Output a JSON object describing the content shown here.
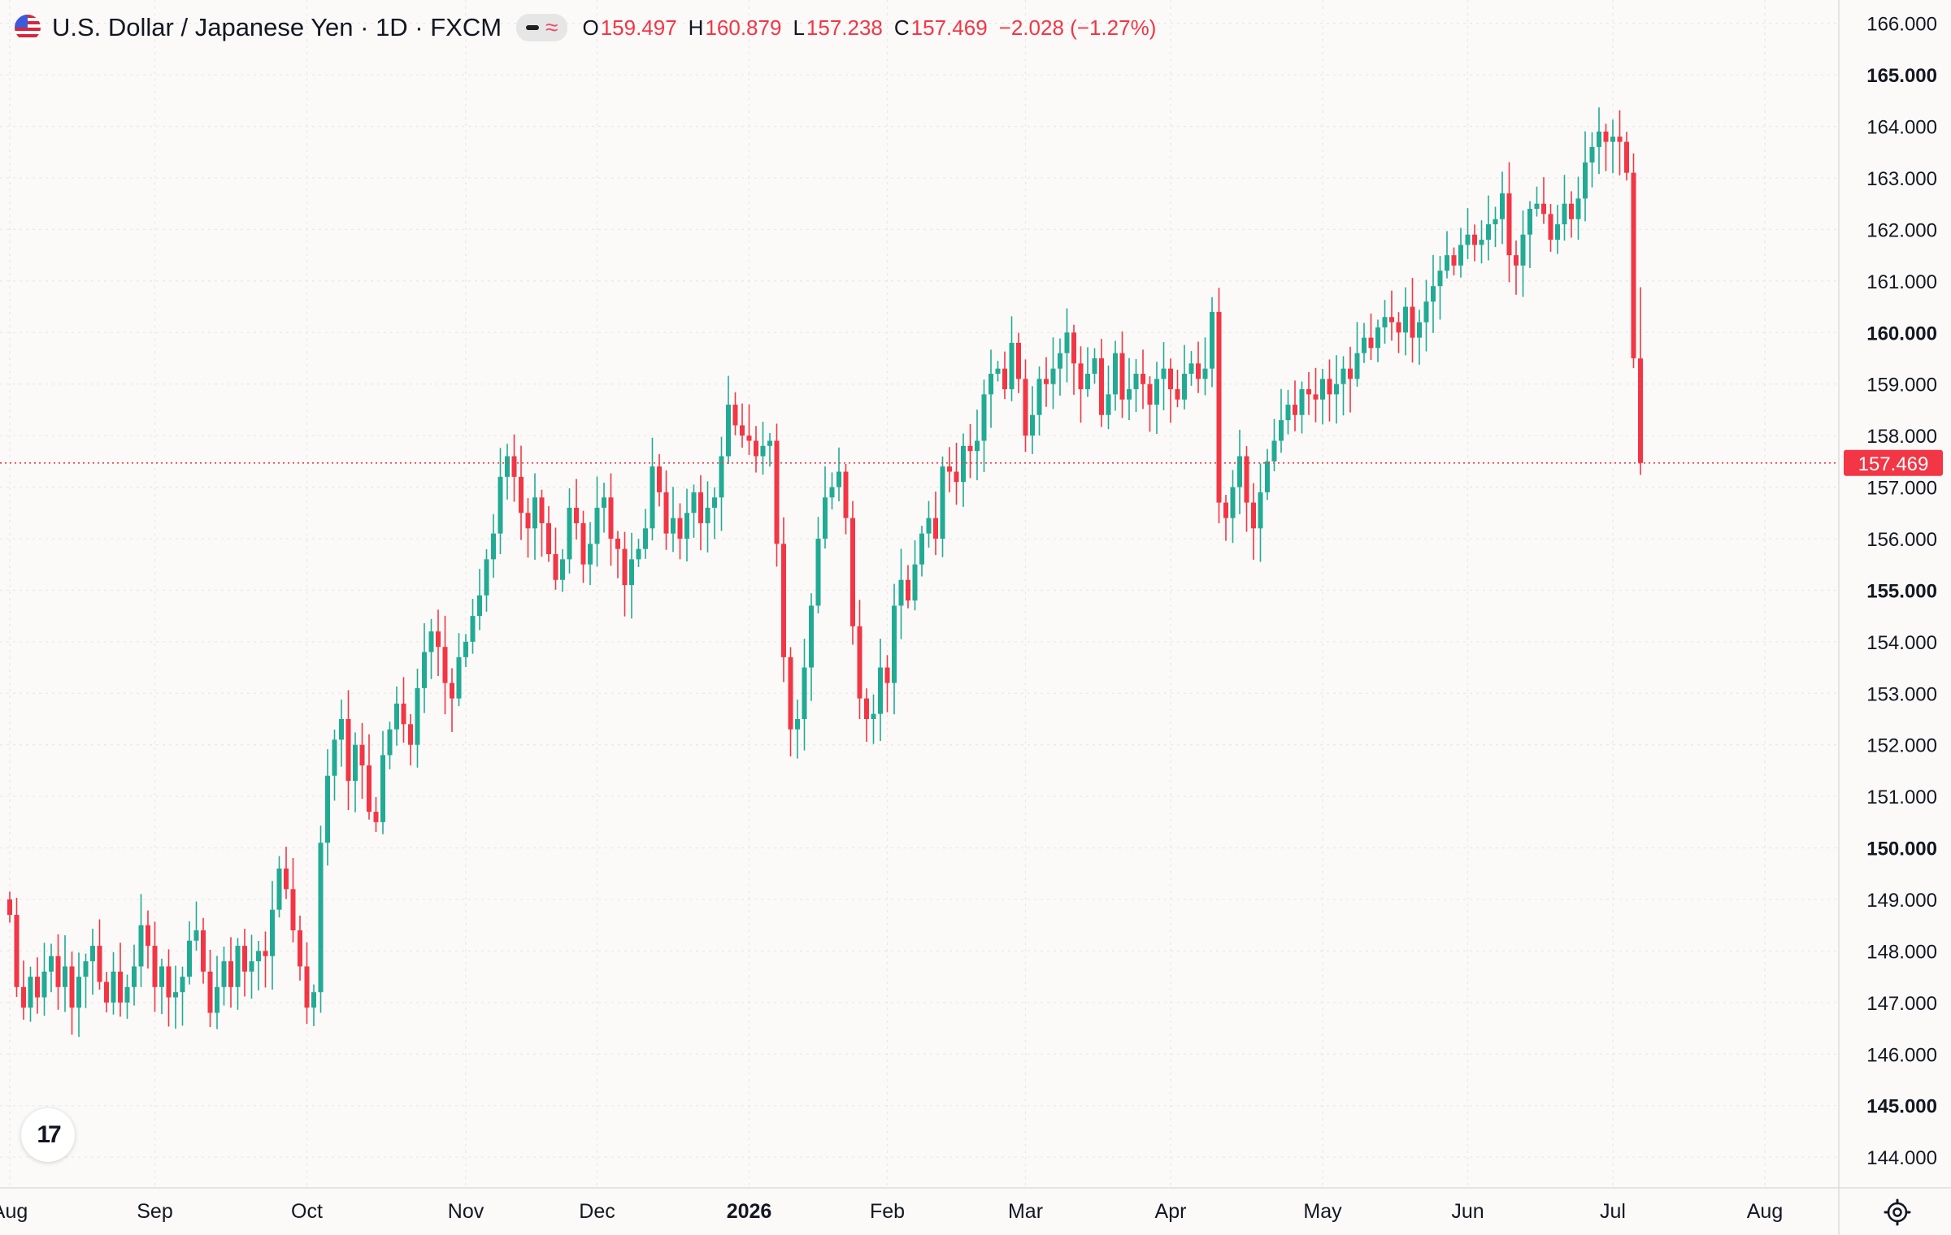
{
  "legend": {
    "symbol": "U.S. Dollar / Japanese Yen · 1D · FXCM",
    "o_label": "O",
    "o": "159.497",
    "h_label": "H",
    "h": "160.879",
    "l_label": "L",
    "l": "157.238",
    "c_label": "C",
    "c": "157.469",
    "change": "−2.028 (−1.27%)",
    "icons": [
      "us-flag-icon",
      "hide-indicator-icon",
      "compare-icon"
    ]
  },
  "chart_data": {
    "type": "candlestick",
    "y_range": [
      143.75,
      166.2
    ],
    "y_ticks": [
      "166.000",
      "165.000",
      "164.000",
      "163.000",
      "162.000",
      "161.000",
      "160.000",
      "159.000",
      "158.000",
      "157.000",
      "156.000",
      "155.000",
      "154.000",
      "153.000",
      "152.000",
      "151.000",
      "150.000",
      "149.000",
      "148.000",
      "147.000",
      "146.000",
      "145.000",
      "144.000"
    ],
    "y_ticks_bold": [
      "165.000",
      "160.000",
      "155.000",
      "150.000",
      "145.000"
    ],
    "x_labels": [
      {
        "label": "Aug",
        "bar": 0
      },
      {
        "label": "Sep",
        "bar": 21
      },
      {
        "label": "Oct",
        "bar": 43
      },
      {
        "label": "Nov",
        "bar": 66
      },
      {
        "label": "Dec",
        "bar": 85
      },
      {
        "label": "2026",
        "bar": 107,
        "bold": true
      },
      {
        "label": "Feb",
        "bar": 127
      },
      {
        "label": "Mar",
        "bar": 147
      },
      {
        "label": "Apr",
        "bar": 168
      },
      {
        "label": "May",
        "bar": 190
      },
      {
        "label": "Jun",
        "bar": 211
      },
      {
        "label": "Jul",
        "bar": 232
      },
      {
        "label": "Aug",
        "bar": 254
      }
    ],
    "last_price": "157.469",
    "colors": {
      "up": "#22ab94",
      "down": "#f23645",
      "grid": "#e9e9e9"
    },
    "closes": [
      148.7,
      147.3,
      146.9,
      147.5,
      147.1,
      147.6,
      147.9,
      147.3,
      147.7,
      146.9,
      147.5,
      147.8,
      148.1,
      147.4,
      147.0,
      147.6,
      147.0,
      147.3,
      147.7,
      148.5,
      148.1,
      147.3,
      147.7,
      147.1,
      147.2,
      147.5,
      148.2,
      148.4,
      147.6,
      146.8,
      147.3,
      147.8,
      147.3,
      148.1,
      147.6,
      147.8,
      148.0,
      147.9,
      148.8,
      149.6,
      149.2,
      148.4,
      147.7,
      146.9,
      147.2,
      150.1,
      151.4,
      152.1,
      152.5,
      151.3,
      152.0,
      151.6,
      150.7,
      150.5,
      151.8,
      152.3,
      152.8,
      152.4,
      152.0,
      153.1,
      153.8,
      154.2,
      153.9,
      153.2,
      152.9,
      153.7,
      154.0,
      154.5,
      154.9,
      155.6,
      156.1,
      157.2,
      157.6,
      157.2,
      156.5,
      156.2,
      156.8,
      156.3,
      155.7,
      155.2,
      155.6,
      156.6,
      156.3,
      155.5,
      155.9,
      156.6,
      156.8,
      156.0,
      155.8,
      155.1,
      155.6,
      155.8,
      156.2,
      157.4,
      156.9,
      156.1,
      156.4,
      156.0,
      156.5,
      156.9,
      156.3,
      156.6,
      156.8,
      157.6,
      158.6,
      158.2,
      158.0,
      157.9,
      157.6,
      157.8,
      157.9,
      155.9,
      153.7,
      152.3,
      152.5,
      153.5,
      154.7,
      156.0,
      156.8,
      157.0,
      157.3,
      156.4,
      154.3,
      152.9,
      152.5,
      152.6,
      153.5,
      153.2,
      154.7,
      155.2,
      154.8,
      155.5,
      156.1,
      156.4,
      156.0,
      157.4,
      157.3,
      157.1,
      157.8,
      157.7,
      157.9,
      158.8,
      159.2,
      159.3,
      158.9,
      159.8,
      159.1,
      158.0,
      158.4,
      159.1,
      159.0,
      159.3,
      159.6,
      160.0,
      159.4,
      158.9,
      159.2,
      159.5,
      158.4,
      158.8,
      159.6,
      158.7,
      158.9,
      159.2,
      159.0,
      158.6,
      159.1,
      159.3,
      158.9,
      158.7,
      159.2,
      159.4,
      159.1,
      159.3,
      160.4,
      156.7,
      156.4,
      157.0,
      157.6,
      156.7,
      156.2,
      156.9,
      157.5,
      157.9,
      158.3,
      158.6,
      158.4,
      158.9,
      158.8,
      158.7,
      159.1,
      158.8,
      159.0,
      159.3,
      159.1,
      159.6,
      159.9,
      159.7,
      160.1,
      160.3,
      160.2,
      160.0,
      160.5,
      159.9,
      160.2,
      160.6,
      160.9,
      161.2,
      161.5,
      161.3,
      161.7,
      161.9,
      161.7,
      161.8,
      162.1,
      162.2,
      162.7,
      161.5,
      161.3,
      161.9,
      162.4,
      162.5,
      162.3,
      161.8,
      162.1,
      162.5,
      162.2,
      162.6,
      163.3,
      163.6,
      163.9,
      163.7,
      163.8,
      163.7,
      163.1,
      159.5,
      157.5
    ],
    "ohlc_last": {
      "open": 159.497,
      "high": 160.879,
      "low": 157.238,
      "close": 157.469
    }
  }
}
